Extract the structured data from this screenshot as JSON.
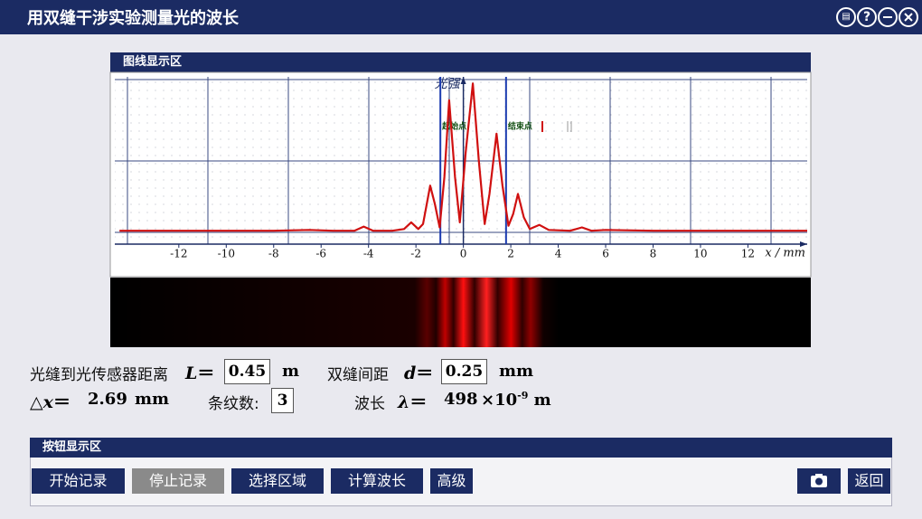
{
  "header": {
    "title": "用双缝干涉实验测量光的波长",
    "help": "?"
  },
  "chart_panel": {
    "title": "图线显示区"
  },
  "chart_data": {
    "type": "line",
    "x": [
      -14.5,
      -12,
      -10,
      -8,
      -6.5,
      -5.5,
      -4.6,
      -4.2,
      -3.8,
      -3,
      -2.5,
      -2.2,
      -1.9,
      -1.7,
      -1.4,
      -1.2,
      -1.0,
      -0.8,
      -0.6,
      -0.35,
      -0.15,
      0.1,
      0.4,
      0.65,
      0.9,
      1.1,
      1.4,
      1.65,
      1.9,
      2.1,
      2.3,
      2.55,
      2.8,
      3.2,
      3.6,
      4.5,
      5.0,
      5.4,
      6,
      8,
      10,
      12,
      14.5
    ],
    "values": [
      8,
      8,
      8,
      8,
      8.5,
      8,
      8,
      10.5,
      8,
      8,
      9,
      13,
      9,
      12,
      35,
      24,
      10,
      40,
      86,
      40,
      13,
      55,
      96,
      50,
      12,
      30,
      66,
      35,
      11,
      18,
      30,
      16,
      9,
      11.5,
      8.5,
      8,
      10,
      8,
      8.5,
      8,
      8,
      8,
      8
    ],
    "color": "#d01010",
    "xlim": [
      -14.7,
      14.5
    ],
    "ylim": [
      0,
      100
    ],
    "xticks": [
      -12,
      -10,
      -8,
      -6,
      -4,
      -2,
      0,
      2,
      4,
      6,
      8,
      10,
      12
    ],
    "xlabel": "x / mm",
    "ylabel": "光强",
    "markers": [
      {
        "label": "起始点",
        "x": -0.97
      },
      {
        "label": "结束点",
        "x": 1.8
      }
    ],
    "grid": true
  },
  "params": {
    "L": {
      "label": "光缝到光传感器距离",
      "symbol": "L",
      "eq": "＝",
      "value": 0.45,
      "unit": "m"
    },
    "d": {
      "label": "双缝间距",
      "symbol": "d",
      "eq": "＝",
      "value": 0.25,
      "unit": "mm"
    },
    "dx": {
      "label": "△",
      "symbol": "x",
      "eq": "＝",
      "value": 2.69,
      "unit": "mm"
    },
    "fringes": {
      "label": "条纹数:",
      "value": 3
    },
    "wavelength": {
      "label": "波长",
      "symbol": "λ",
      "eq": "＝",
      "value": 498,
      "factor": "×10",
      "exponent": "-9",
      "unit": "m"
    }
  },
  "button_panel": {
    "title": "按钮显示区",
    "buttons": [
      "开始记录",
      "停止记录",
      "选择区域",
      "计算波长",
      "高级"
    ],
    "back": "返回"
  }
}
